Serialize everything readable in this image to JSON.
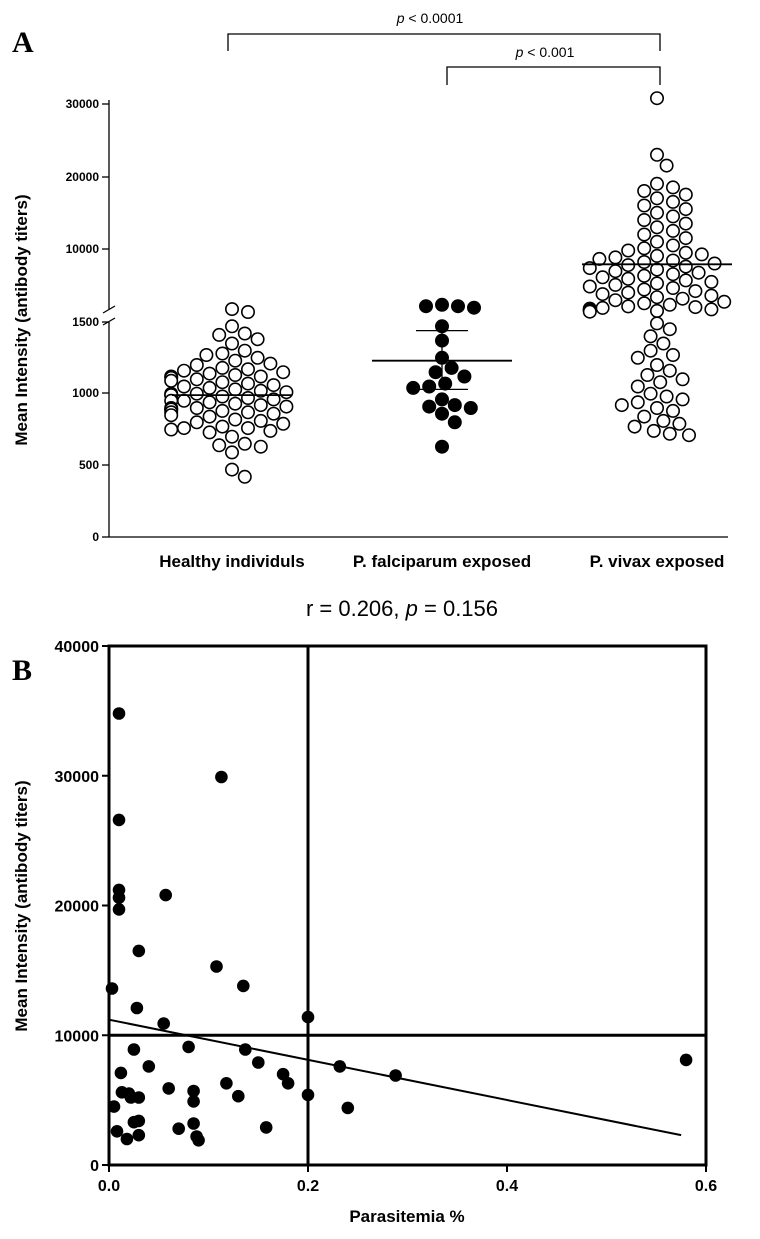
{
  "chart_data": [
    {
      "type": "scatter",
      "panel_label": "A",
      "ylabel": "Mean Intensity (antibody titers)",
      "categories": [
        "Healthy individuls",
        "P. falciparum exposed",
        "P. vivax exposed"
      ],
      "y_axis_broken": true,
      "y_segments": [
        {
          "range": [
            0,
            1500
          ],
          "ticks": [
            0,
            500,
            1000,
            1500
          ]
        },
        {
          "range": [
            1500,
            30000
          ],
          "ticks": [
            10000,
            20000,
            30000
          ],
          "note": "upper segment uses compressed scale"
        }
      ],
      "comparisons": [
        {
          "from": "Healthy individuls",
          "to": "P. vivax exposed",
          "label_prefix": "p",
          "label_rest": " < 0.0001"
        },
        {
          "from": "P. falciparum exposed",
          "to": "P. vivax exposed",
          "label_prefix": "p",
          "label_rest": " < 0.001"
        }
      ],
      "series": [
        {
          "category": "Healthy individuls",
          "marker": "open-circle",
          "mean": 990,
          "values": [
            420,
            470,
            590,
            630,
            640,
            650,
            700,
            730,
            740,
            750,
            760,
            760,
            770,
            790,
            800,
            810,
            820,
            840,
            850,
            860,
            870,
            870,
            880,
            890,
            890,
            900,
            900,
            910,
            920,
            930,
            940,
            950,
            950,
            960,
            970,
            980,
            990,
            990,
            1000,
            1000,
            1010,
            1020,
            1030,
            1040,
            1050,
            1060,
            1070,
            1080,
            1090,
            1100,
            1110,
            1120,
            1120,
            1130,
            1140,
            1150,
            1160,
            1170,
            1180,
            1200,
            1210,
            1230,
            1250,
            1270,
            1280,
            1300,
            1350,
            1380,
            1410,
            1420,
            1470,
            1570,
            1590
          ]
        },
        {
          "category": "P. falciparum exposed",
          "marker": "filled-circle",
          "mean": 1230,
          "sem_low": 1030,
          "sem_high": 1440,
          "values": [
            630,
            800,
            860,
            900,
            910,
            920,
            960,
            1040,
            1050,
            1070,
            1120,
            1150,
            1180,
            1250,
            1370,
            1470,
            1600,
            1610,
            1610,
            1620
          ]
        },
        {
          "category": "P. vivax exposed",
          "marker": "open-circle",
          "mean": 8000,
          "upper_values": [
            1800,
            1900,
            1950,
            2000,
            2050,
            2100,
            2150,
            2200,
            2300,
            2400,
            2500,
            2700,
            2900,
            3100,
            3300,
            3500,
            3700,
            3900,
            4100,
            4300,
            4500,
            4700,
            4900,
            5100,
            5300,
            5500,
            5700,
            5900,
            6100,
            6300,
            6500,
            6700,
            6900,
            7100,
            7300,
            7500,
            7700,
            7900,
            8100,
            8300,
            8500,
            8700,
            8900,
            9100,
            9300,
            9500,
            9800,
            10100,
            10500,
            11000,
            11500,
            12000,
            12500,
            13000,
            13500,
            14000,
            14500,
            15000,
            15500,
            16000,
            16500,
            17000,
            17500,
            18000,
            18500,
            19000,
            21500,
            23000,
            30800
          ],
          "lower_values": [
            710,
            720,
            740,
            770,
            790,
            810,
            840,
            880,
            900,
            920,
            940,
            960,
            980,
            1000,
            1050,
            1080,
            1100,
            1130,
            1160,
            1200,
            1250,
            1270,
            1300,
            1350,
            1400,
            1450,
            1490
          ]
        }
      ]
    },
    {
      "type": "scatter",
      "panel_label": "B",
      "title_prefix": "r = 0.206, ",
      "title_p": "p",
      "title_rest": " = 0.156",
      "xlabel": "Parasitemia %",
      "ylabel": "Mean Intensity (antibody titers)",
      "xlim": [
        0,
        0.6
      ],
      "ylim": [
        0,
        40000
      ],
      "x_ticks": [
        0.0,
        0.2,
        0.4,
        0.6
      ],
      "x_tick_labels": [
        "0.0",
        "0.2",
        "0.4",
        "0.6"
      ],
      "y_ticks": [
        0,
        10000,
        20000,
        30000,
        40000
      ],
      "reference_lines": {
        "x": 0.2,
        "y": 10000
      },
      "regression": {
        "x0": 0.0,
        "y0": 11200,
        "x1": 0.575,
        "y1": 2300
      },
      "points": [
        {
          "x": 0.003,
          "y": 13600
        },
        {
          "x": 0.005,
          "y": 4500
        },
        {
          "x": 0.008,
          "y": 2600
        },
        {
          "x": 0.01,
          "y": 34800
        },
        {
          "x": 0.01,
          "y": 26600
        },
        {
          "x": 0.01,
          "y": 21200
        },
        {
          "x": 0.01,
          "y": 20600
        },
        {
          "x": 0.01,
          "y": 19700
        },
        {
          "x": 0.012,
          "y": 7100
        },
        {
          "x": 0.013,
          "y": 5600
        },
        {
          "x": 0.018,
          "y": 2000
        },
        {
          "x": 0.02,
          "y": 5500
        },
        {
          "x": 0.022,
          "y": 5200
        },
        {
          "x": 0.025,
          "y": 8900
        },
        {
          "x": 0.025,
          "y": 3300
        },
        {
          "x": 0.028,
          "y": 12100
        },
        {
          "x": 0.03,
          "y": 16500
        },
        {
          "x": 0.03,
          "y": 5200
        },
        {
          "x": 0.03,
          "y": 3400
        },
        {
          "x": 0.03,
          "y": 2300
        },
        {
          "x": 0.04,
          "y": 7600
        },
        {
          "x": 0.055,
          "y": 10900
        },
        {
          "x": 0.057,
          "y": 20800
        },
        {
          "x": 0.06,
          "y": 5900
        },
        {
          "x": 0.07,
          "y": 2800
        },
        {
          "x": 0.08,
          "y": 9100
        },
        {
          "x": 0.085,
          "y": 5700
        },
        {
          "x": 0.085,
          "y": 4900
        },
        {
          "x": 0.085,
          "y": 3200
        },
        {
          "x": 0.088,
          "y": 2200
        },
        {
          "x": 0.09,
          "y": 1900
        },
        {
          "x": 0.108,
          "y": 15300
        },
        {
          "x": 0.113,
          "y": 29900
        },
        {
          "x": 0.118,
          "y": 6300
        },
        {
          "x": 0.13,
          "y": 5300
        },
        {
          "x": 0.135,
          "y": 13800
        },
        {
          "x": 0.137,
          "y": 8900
        },
        {
          "x": 0.15,
          "y": 7900
        },
        {
          "x": 0.158,
          "y": 2900
        },
        {
          "x": 0.175,
          "y": 7000
        },
        {
          "x": 0.18,
          "y": 6300
        },
        {
          "x": 0.2,
          "y": 11400
        },
        {
          "x": 0.2,
          "y": 5400
        },
        {
          "x": 0.232,
          "y": 7600
        },
        {
          "x": 0.24,
          "y": 4400
        },
        {
          "x": 0.288,
          "y": 6900
        },
        {
          "x": 0.58,
          "y": 8100
        }
      ]
    }
  ]
}
